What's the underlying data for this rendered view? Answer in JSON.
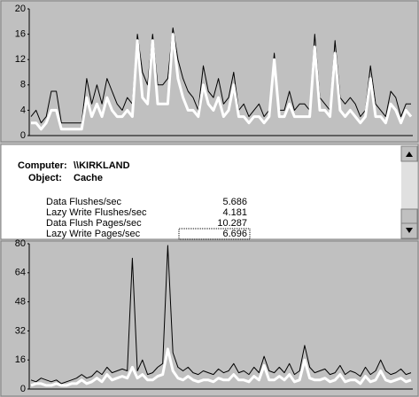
{
  "chart_data": [
    {
      "type": "line",
      "ylim": [
        0,
        20
      ],
      "yticks": [
        0,
        4,
        8,
        12,
        16,
        20
      ],
      "series": [
        {
          "color": "#000000",
          "values": [
            3,
            4,
            2,
            3,
            7,
            7,
            2,
            2,
            2,
            2,
            2,
            9,
            5,
            8,
            5,
            9,
            7,
            5,
            4,
            6,
            5,
            16,
            10,
            8,
            16,
            8,
            8,
            9,
            17,
            12,
            9,
            7,
            6,
            4,
            11,
            7,
            6,
            9,
            5,
            6,
            10,
            4,
            5,
            3,
            4,
            5,
            3,
            4,
            13,
            4,
            4,
            7,
            4,
            5,
            5,
            4,
            16,
            6,
            5,
            4,
            15,
            6,
            5,
            6,
            5,
            3,
            4,
            11,
            5,
            4,
            3,
            7,
            6,
            3,
            5,
            5
          ]
        },
        {
          "color": "#ffffff",
          "values": [
            2,
            2,
            1,
            2,
            4,
            4,
            1,
            1,
            1,
            1,
            1,
            6,
            3,
            5,
            3,
            6,
            4,
            3,
            3,
            4,
            3,
            15,
            6,
            5,
            15,
            5,
            5,
            5,
            16,
            9,
            6,
            4,
            4,
            3,
            8,
            5,
            4,
            6,
            3,
            4,
            8,
            3,
            3,
            2,
            3,
            3,
            2,
            3,
            12,
            3,
            3,
            5,
            3,
            3,
            3,
            3,
            14,
            4,
            4,
            3,
            13,
            4,
            3,
            4,
            3,
            2,
            3,
            9,
            3,
            3,
            2,
            5,
            4,
            2,
            4,
            3
          ]
        }
      ]
    },
    {
      "type": "line",
      "ylim": [
        0,
        80
      ],
      "yticks": [
        0,
        16,
        32,
        48,
        64,
        80
      ],
      "series": [
        {
          "color": "#000000",
          "values": [
            5,
            4,
            6,
            5,
            4,
            5,
            3,
            4,
            5,
            6,
            8,
            6,
            7,
            10,
            8,
            12,
            9,
            10,
            11,
            10,
            72,
            10,
            16,
            8,
            9,
            12,
            14,
            79,
            20,
            12,
            10,
            12,
            9,
            8,
            10,
            9,
            8,
            11,
            9,
            10,
            14,
            9,
            10,
            8,
            12,
            9,
            18,
            10,
            9,
            12,
            9,
            14,
            8,
            10,
            24,
            12,
            9,
            10,
            11,
            8,
            9,
            13,
            8,
            10,
            9,
            7,
            12,
            8,
            10,
            16,
            10,
            8,
            9,
            11,
            8,
            9
          ]
        },
        {
          "color": "#ffffff",
          "values": [
            2,
            3,
            3,
            2,
            2,
            3,
            2,
            2,
            3,
            3,
            5,
            3,
            4,
            6,
            4,
            8,
            5,
            6,
            7,
            6,
            12,
            6,
            8,
            5,
            5,
            7,
            8,
            22,
            10,
            6,
            5,
            7,
            5,
            4,
            5,
            5,
            4,
            6,
            5,
            5,
            8,
            5,
            5,
            4,
            7,
            5,
            13,
            5,
            5,
            7,
            5,
            8,
            4,
            5,
            16,
            6,
            5,
            5,
            6,
            4,
            5,
            8,
            4,
            5,
            5,
            3,
            7,
            4,
            5,
            10,
            5,
            4,
            5,
            6,
            4,
            5
          ]
        }
      ]
    }
  ],
  "details": {
    "computer_label": "Computer:",
    "computer": "\\\\KIRKLAND",
    "object_label": "Object:",
    "object": "Cache",
    "counters": [
      {
        "name": "Data Flushes/sec",
        "value": 5.686
      },
      {
        "name": "Lazy Write Flushes/sec",
        "value": 4.181
      },
      {
        "name": "Data Flush Pages/sec",
        "value": 10.287
      },
      {
        "name": "Lazy Write Pages/sec",
        "value": 6.696
      }
    ]
  }
}
